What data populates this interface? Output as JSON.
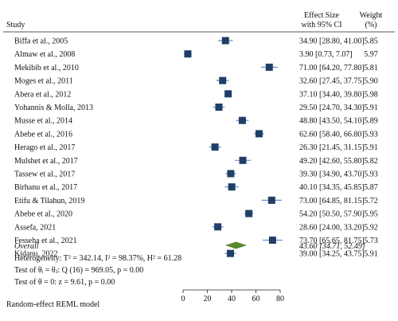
{
  "headers": {
    "study": "Study",
    "effect_line1": "Effect Size",
    "effect_line2": "with 95% CI",
    "weight_line1": "Weight",
    "weight_line2": "(%)"
  },
  "overall_label": "Overall",
  "overall_ci_text": "43.60 [34.71, 52.49]",
  "heterogeneity_text": "Heterogeneity: T² = 342.14, I² = 98.37%, H² = 61.28",
  "test_group_text": "Test of θᵢ = θⱼ: Q (16) = 969.05, p = 0.00",
  "test_theta_text": "Test of θ = 0: z = 9.61, p = 0.00",
  "model_note": "Random-effect REML model",
  "colors": {
    "marker": "#1f3f66",
    "diamond": "#5a8a2e",
    "ci_line": "#6b8cc4",
    "axis": "#222222"
  },
  "chart_data": {
    "type": "forest",
    "xlim": [
      0,
      80
    ],
    "x_ticks": [
      "0",
      "20",
      "40",
      "60",
      "80"
    ],
    "studies": [
      {
        "name": "Biffa et al., 2005",
        "es": 34.9,
        "lo": 28.8,
        "hi": 41.0,
        "ci_text": "34.90 [28.80, 41.00]",
        "weight": "5.85"
      },
      {
        "name": "Almaw et al., 2008",
        "es": 3.9,
        "lo": 0.73,
        "hi": 7.07,
        "ci_text": "3.90 [0.73, 7.07]",
        "weight": "5.97"
      },
      {
        "name": "Mekibib et al., 2010",
        "es": 71.0,
        "lo": 64.2,
        "hi": 77.8,
        "ci_text": "71.00 [64.20, 77.80]",
        "weight": "5.81"
      },
      {
        "name": "Moges et al., 2011",
        "es": 32.6,
        "lo": 27.45,
        "hi": 37.75,
        "ci_text": "32.60 [27.45, 37.75]",
        "weight": "5.90"
      },
      {
        "name": "Abera et al., 2012",
        "es": 37.1,
        "lo": 34.4,
        "hi": 39.8,
        "ci_text": "37.10 [34.40, 39.80]",
        "weight": "5.98"
      },
      {
        "name": "Yohannis & Molla, 2013",
        "es": 29.5,
        "lo": 24.7,
        "hi": 34.3,
        "ci_text": "29.50 [24.70, 34.30]",
        "weight": "5.91"
      },
      {
        "name": "Musse et al., 2014",
        "es": 48.8,
        "lo": 43.5,
        "hi": 54.1,
        "ci_text": "48.80 [43.50, 54.10]",
        "weight": "5.89"
      },
      {
        "name": "Abebe et al., 2016",
        "es": 62.6,
        "lo": 58.4,
        "hi": 66.8,
        "ci_text": "62.60 [58.40, 66.80]",
        "weight": "5.93"
      },
      {
        "name": "Herago et al., 2017",
        "es": 26.3,
        "lo": 21.45,
        "hi": 31.15,
        "ci_text": "26.30 [21.45, 31.15]",
        "weight": "5.91"
      },
      {
        "name": "Mulshet et al., 2017",
        "es": 49.2,
        "lo": 42.6,
        "hi": 55.8,
        "ci_text": "49.20 [42.60, 55.80]",
        "weight": "5.82"
      },
      {
        "name": "Tassew et al., 2017",
        "es": 39.3,
        "lo": 34.9,
        "hi": 43.7,
        "ci_text": "39.30 [34.90, 43.70]",
        "weight": "5.93"
      },
      {
        "name": "Birhanu et al., 2017",
        "es": 40.1,
        "lo": 34.35,
        "hi": 45.85,
        "ci_text": "40.10 [34.35, 45.85]",
        "weight": "5.87"
      },
      {
        "name": "Etifu & Tilahun, 2019",
        "es": 73.0,
        "lo": 64.85,
        "hi": 81.15,
        "ci_text": "73.00 [64.85, 81.15]",
        "weight": "5.72"
      },
      {
        "name": "Abebe et al., 2020",
        "es": 54.2,
        "lo": 50.5,
        "hi": 57.9,
        "ci_text": "54.20 [50.50, 57.90]",
        "weight": "5.95"
      },
      {
        "name": "Assefa, 2021",
        "es": 28.6,
        "lo": 24.0,
        "hi": 33.2,
        "ci_text": "28.60 [24.00, 33.20]",
        "weight": "5.92"
      },
      {
        "name": "Fesseha et al., 2021",
        "es": 73.7,
        "lo": 65.65,
        "hi": 81.75,
        "ci_text": "73.70 [65.65, 81.75]",
        "weight": "5.73"
      },
      {
        "name": "Kidanu, 2022",
        "es": 39.0,
        "lo": 34.25,
        "hi": 43.75,
        "ci_text": "39.00 [34.25, 43.75]",
        "weight": "5.91"
      }
    ],
    "overall": {
      "es": 43.6,
      "lo": 34.71,
      "hi": 52.49
    }
  }
}
